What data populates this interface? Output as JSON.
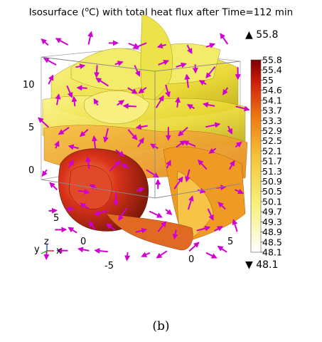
{
  "title_prefix": "Isosurface (",
  "title_sup": "o",
  "title_suffix": "C) with total heat flux after Time=112 min",
  "max_label": "▲ 55.8",
  "min_label": "▼ 48.1",
  "colorbar_ticks": [
    "55.8",
    "55.4",
    "55",
    "54.6",
    "54.1",
    "53.7",
    "53.3",
    "52.9",
    "52.5",
    "52.1",
    "51.7",
    "51.3",
    "50.9",
    "50.5",
    "50.1",
    "49.7",
    "49.3",
    "48.9",
    "48.5",
    "48.1"
  ],
  "z_axis_ticks": [
    "10",
    "5",
    "0"
  ],
  "y_axis_ticks": [
    "5",
    "0",
    "-5"
  ],
  "x_axis_ticks": [
    "0",
    "5"
  ],
  "triad": {
    "y": "y",
    "z": "z",
    "x": "x"
  },
  "caption": "(b)",
  "colors": {
    "arrow": "#d000d0",
    "isosurface_hot": "#d23418",
    "isosurface_mid": "#eaa620",
    "isosurface_cool": "#e8e23a",
    "frame": "#9a9a9a"
  }
}
